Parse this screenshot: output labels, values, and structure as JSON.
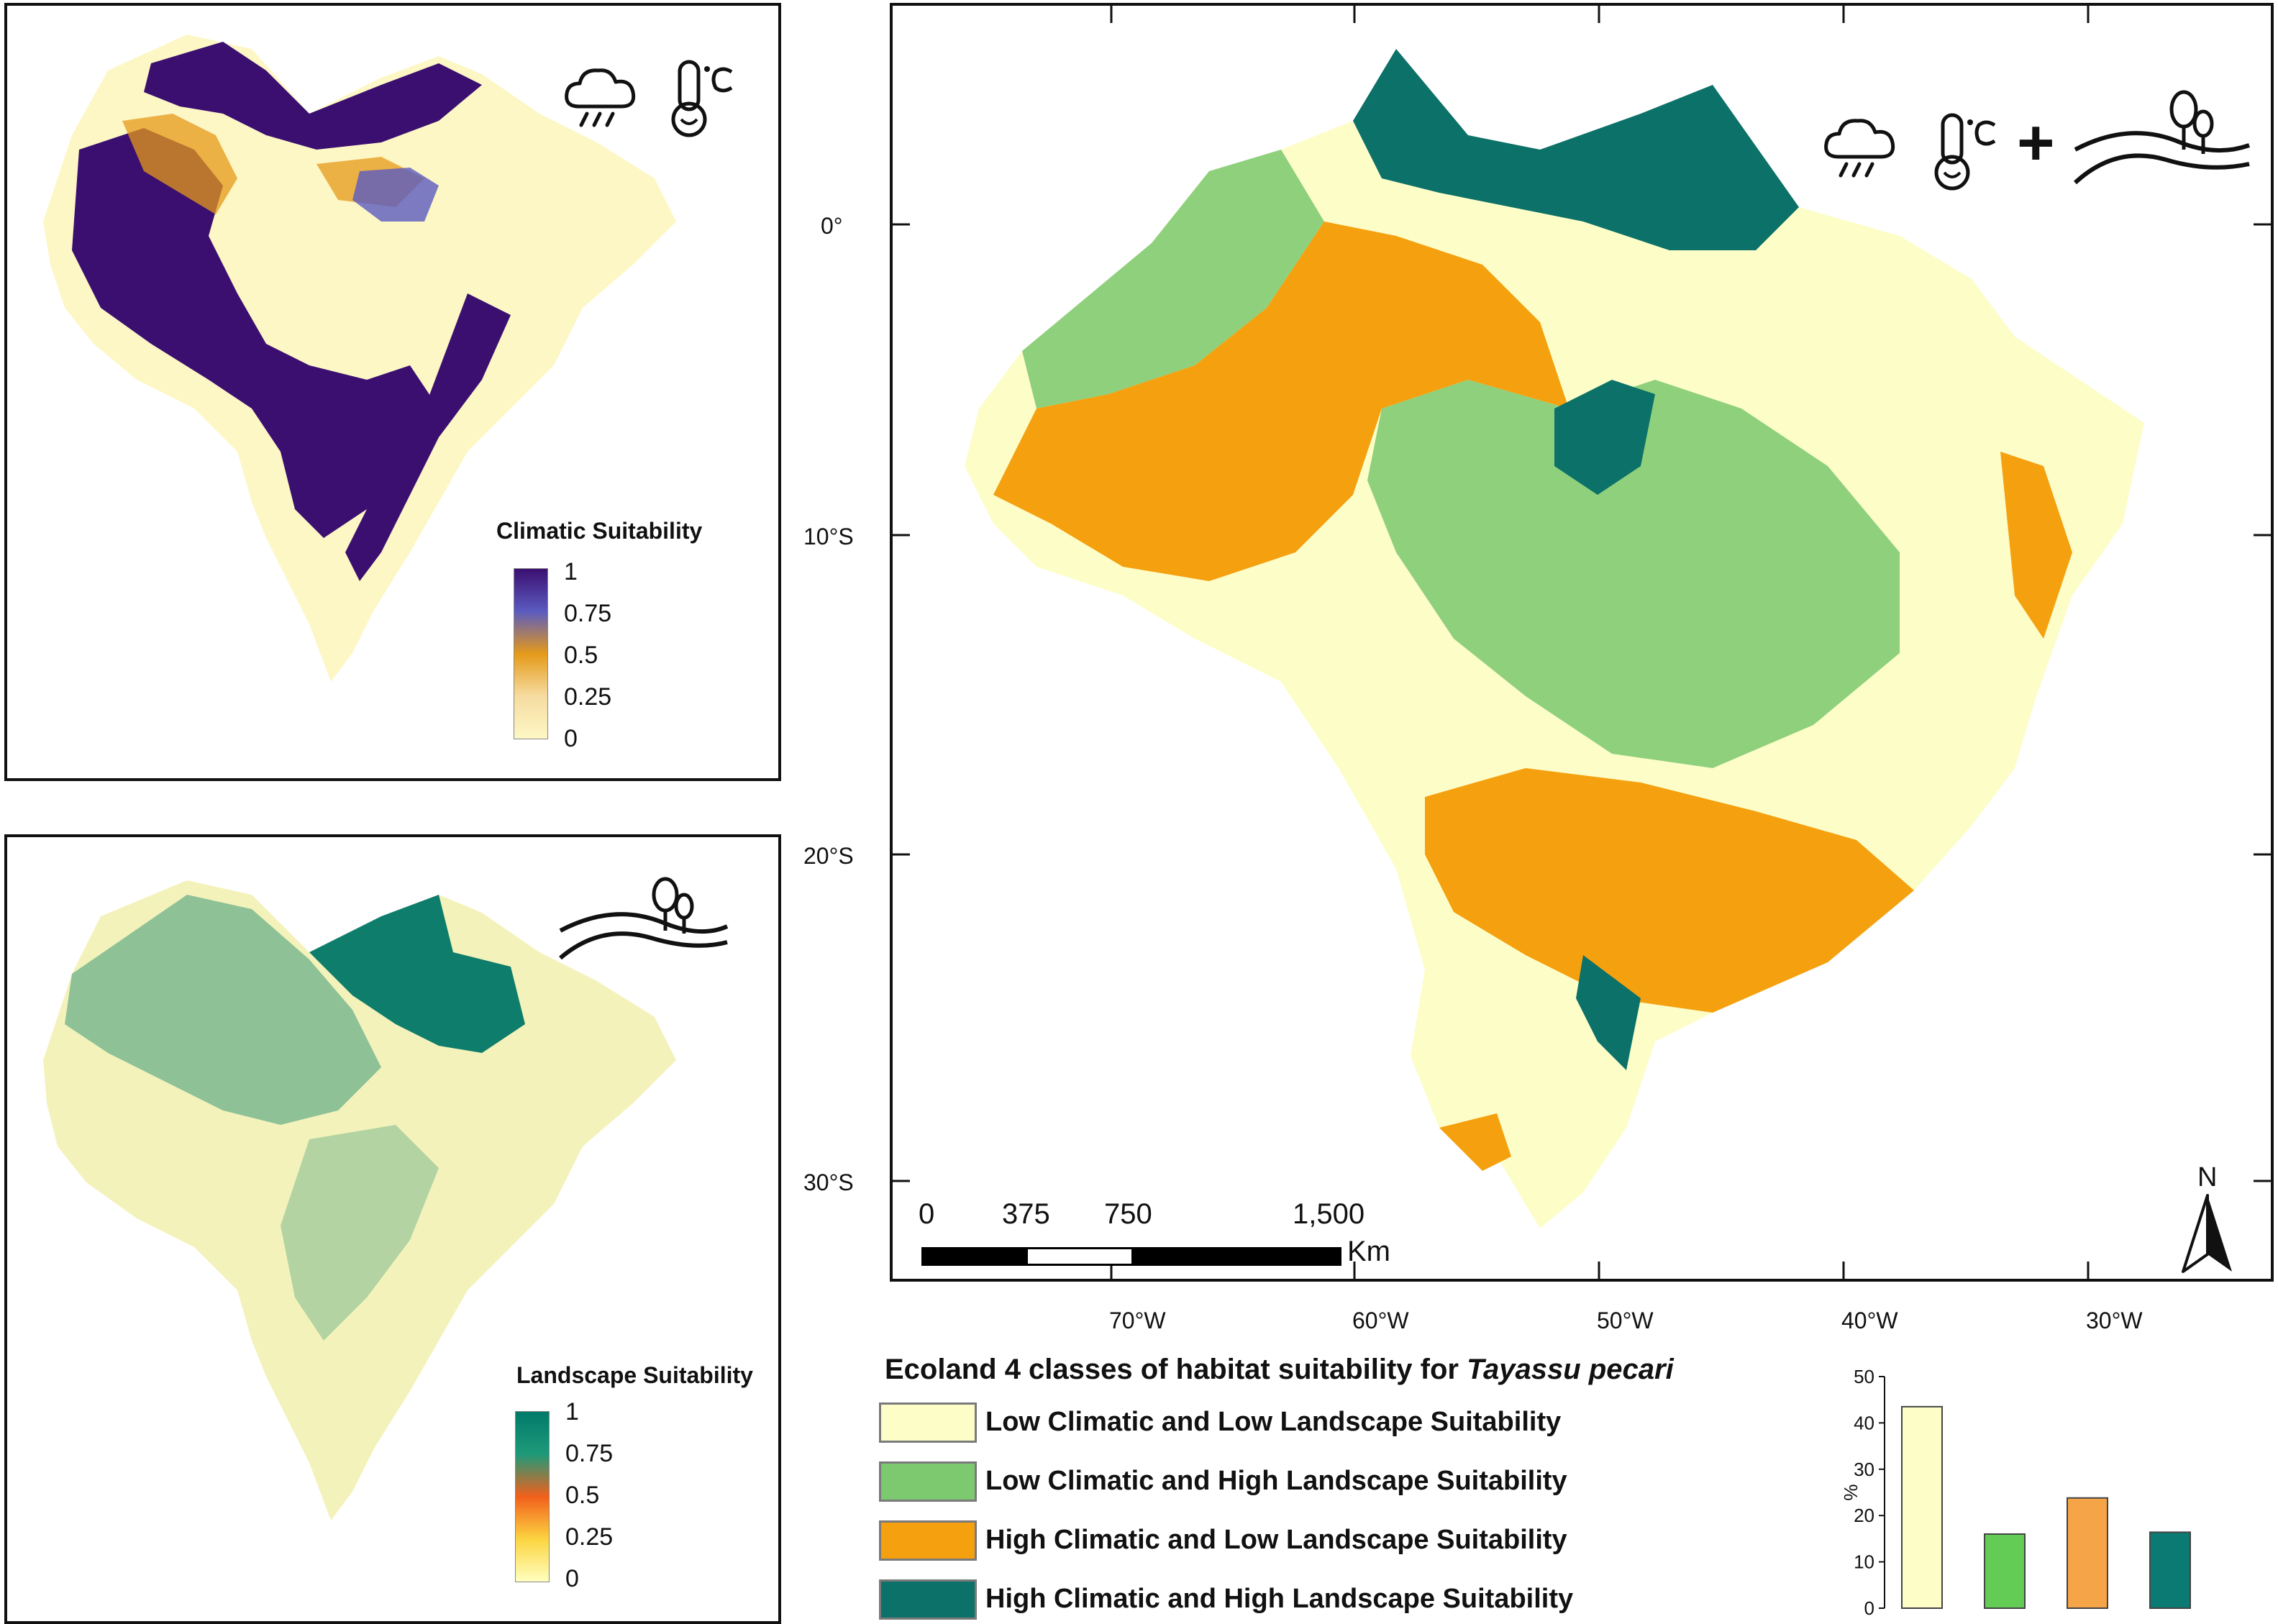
{
  "climatic_panel": {
    "legend_title": "Climatic Suitability",
    "ticks": [
      "1",
      "0.75",
      "0.5",
      "0.25",
      "0"
    ],
    "colors": [
      "#3b0f70",
      "#5b5bc0",
      "#e59a19",
      "#f6dca0",
      "#fdf7c6"
    ],
    "icons": [
      "rain-cloud-icon",
      "thermometer-celsius-icon"
    ]
  },
  "landscape_panel": {
    "legend_title": "Landscape Suitability",
    "ticks": [
      "1",
      "0.75",
      "0.5",
      "0.25",
      "0"
    ],
    "colors": [
      "#017a6a",
      "#1e9a79",
      "#f2601c",
      "#fcd440",
      "#ffffc0"
    ],
    "icons": [
      "hills-trees-icon"
    ]
  },
  "main_map": {
    "lon_labels": [
      "70°W",
      "60°W",
      "50°W",
      "40°W",
      "30°W"
    ],
    "lat_labels": [
      "0°",
      "10°S",
      "20°S",
      "30°S"
    ],
    "scale_bar": {
      "labels": [
        "0",
        "375",
        "750",
        "1,500"
      ],
      "unit": "Km"
    },
    "north_label": "N",
    "plus_sign": "+",
    "icons": [
      "rain-cloud-icon",
      "thermometer-celsius-icon",
      "hills-trees-icon",
      "north-arrow-icon"
    ]
  },
  "ecoland_legend": {
    "title_prefix": "Ecoland 4 classes of habitat suitability for ",
    "species": "Tayassu pecari",
    "classes": [
      {
        "label": "Low Climatic and Low Landscape Suitability",
        "color": "#fdfdc8"
      },
      {
        "label": "Low Climatic and High Landscape Suitability",
        "color": "#7dc96f"
      },
      {
        "label": "High Climatic and Low Landscape Suitability",
        "color": "#f5a00f"
      },
      {
        "label": "High Climatic and High Landscape Suitability",
        "color": "#0b7169"
      }
    ]
  },
  "chart_data": {
    "type": "bar",
    "ylabel": "%",
    "ylim": [
      0,
      50
    ],
    "yticks": [
      0,
      10,
      20,
      30,
      40,
      50
    ],
    "values": [
      43.5,
      16,
      23.8,
      16.4
    ],
    "colors": [
      "#fdfdc8",
      "#63cc55",
      "#f5a447",
      "#0b7a72"
    ],
    "grid": false
  }
}
